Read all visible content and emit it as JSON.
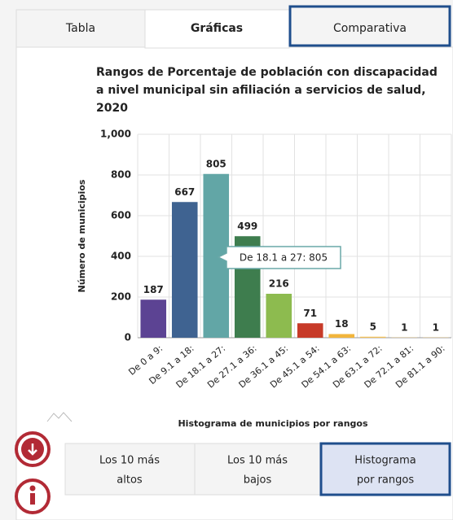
{
  "tabs": [
    "Tabla",
    "Gráficas",
    "Comparativa"
  ],
  "chart_data": {
    "type": "bar",
    "title": [
      "Rangos de Porcentaje de población con discapacidad",
      "a nivel municipal sin afiliación a servicios de salud,",
      "2020"
    ],
    "x_label": "Histograma de municipios por rangos",
    "y_label": "Número de municipios",
    "categories": [
      "De 0 a 9:",
      "De 9.1 a 18:",
      "De 18.1 a 27:",
      "De 27.1 a 36:",
      "De 36.1 a 45:",
      "De 45.1 a 54:",
      "De 54.1 a 63:",
      "De 63.1 a 72:",
      "De 72.1 a 81:",
      "De 81.1 a 90:"
    ],
    "values": [
      187,
      667,
      805,
      499,
      216,
      71,
      18,
      5,
      1,
      1
    ],
    "colors": [
      "#5c4393",
      "#3f6391",
      "#62a6a6",
      "#3e7d4e",
      "#8dbb4f",
      "#c73a28",
      "#f2b53c",
      "#f5c25a",
      "#f5c25a",
      "#f5c25a"
    ],
    "ylim": [
      0,
      1000
    ],
    "yticks": [
      0,
      200,
      400,
      600,
      800,
      {
        "value": 1000,
        "label": "1,000"
      }
    ],
    "grid": true,
    "tooltip": "De 18.1 a 27: 805"
  },
  "buttons": [
    [
      "Los 10 más",
      "altos"
    ],
    [
      "Los 10 más",
      "bajos"
    ],
    [
      "Histograma",
      "por rangos"
    ]
  ]
}
